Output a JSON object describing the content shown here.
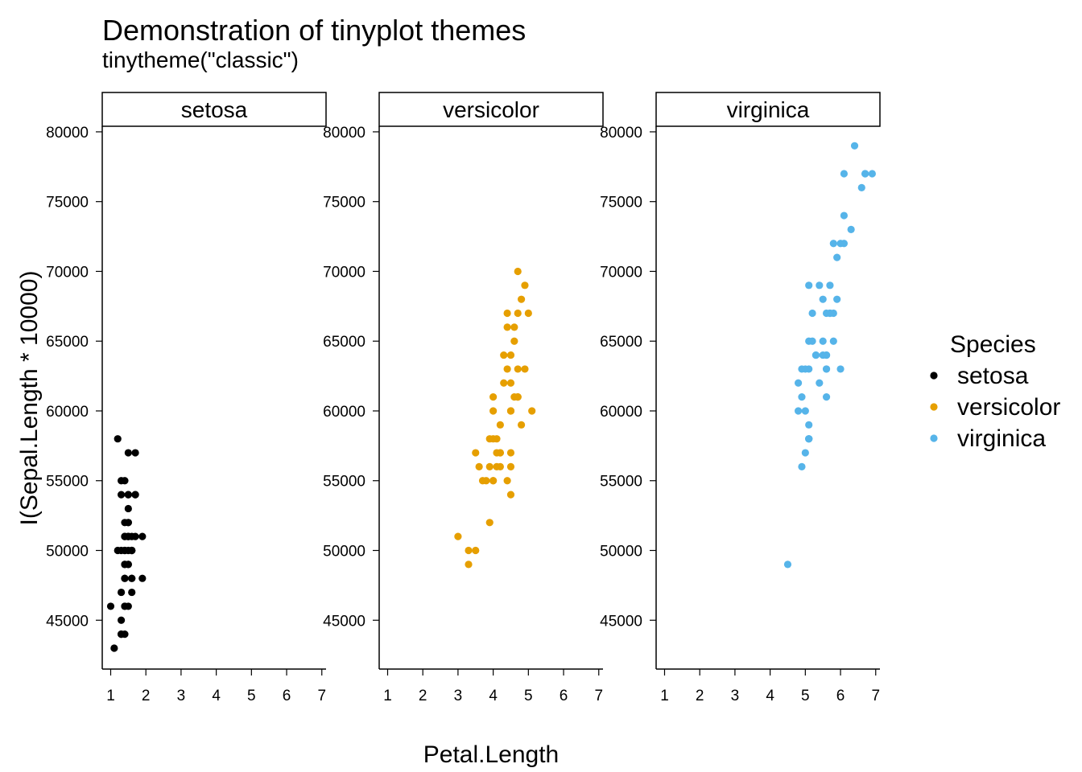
{
  "chart_data": {
    "type": "scatter",
    "title": "Demonstration of tinyplot themes",
    "subtitle": "tinytheme(\"classic\")",
    "xlabel": "Petal.Length",
    "ylabel": "I(Sepal.Length * 10000)",
    "xlim": [
      0.76,
      7.12
    ],
    "ylim": [
      41500,
      80400
    ],
    "x_ticks": [
      1,
      2,
      3,
      4,
      5,
      6,
      7
    ],
    "y_ticks": [
      45000,
      50000,
      55000,
      60000,
      65000,
      70000,
      75000,
      80000
    ],
    "legend": {
      "title": "Species",
      "placement": "right",
      "entries": [
        "setosa",
        "versicolor",
        "virginica"
      ]
    },
    "colors": {
      "setosa": "#000000",
      "versicolor": "#E69F00",
      "virginica": "#56B4E9"
    },
    "panels": [
      {
        "name": "setosa",
        "color": "#000000",
        "x": [
          1.4,
          1.4,
          1.3,
          1.5,
          1.4,
          1.7,
          1.4,
          1.5,
          1.4,
          1.5,
          1.5,
          1.6,
          1.4,
          1.1,
          1.2,
          1.5,
          1.3,
          1.4,
          1.7,
          1.5,
          1.7,
          1.5,
          1.0,
          1.7,
          1.9,
          1.6,
          1.6,
          1.5,
          1.4,
          1.6,
          1.6,
          1.5,
          1.5,
          1.4,
          1.5,
          1.2,
          1.3,
          1.4,
          1.3,
          1.5,
          1.3,
          1.3,
          1.3,
          1.6,
          1.9,
          1.4,
          1.6,
          1.4,
          1.5,
          1.4
        ],
        "y": [
          51000,
          49000,
          47000,
          46000,
          50000,
          54000,
          46000,
          50000,
          44000,
          49000,
          54000,
          48000,
          48000,
          43000,
          58000,
          57000,
          54000,
          51000,
          57000,
          51000,
          54000,
          51000,
          46000,
          51000,
          48000,
          50000,
          50000,
          52000,
          52000,
          47000,
          48000,
          54000,
          52000,
          55000,
          49000,
          50000,
          55000,
          49000,
          44000,
          51000,
          50000,
          45000,
          44000,
          50000,
          51000,
          48000,
          51000,
          46000,
          53000,
          50000
        ]
      },
      {
        "name": "versicolor",
        "color": "#E69F00",
        "x": [
          4.7,
          4.5,
          4.9,
          4.0,
          4.6,
          4.5,
          4.7,
          3.3,
          4.6,
          3.9,
          3.5,
          4.2,
          4.0,
          4.7,
          3.6,
          4.4,
          4.5,
          4.1,
          4.5,
          3.9,
          4.8,
          4.0,
          4.9,
          4.7,
          4.3,
          4.4,
          4.8,
          5.0,
          4.5,
          3.5,
          3.8,
          3.7,
          3.9,
          5.1,
          4.5,
          4.5,
          4.7,
          4.4,
          4.1,
          4.0,
          4.4,
          4.6,
          4.0,
          3.3,
          4.2,
          4.2,
          4.2,
          4.3,
          3.0,
          4.1
        ],
        "y": [
          70000,
          64000,
          69000,
          55000,
          65000,
          57000,
          63000,
          49000,
          66000,
          52000,
          50000,
          59000,
          60000,
          61000,
          56000,
          67000,
          56000,
          58000,
          62000,
          56000,
          59000,
          61000,
          63000,
          61000,
          64000,
          66000,
          68000,
          67000,
          60000,
          57000,
          55000,
          55000,
          58000,
          60000,
          54000,
          60000,
          67000,
          63000,
          56000,
          55000,
          55000,
          61000,
          58000,
          50000,
          56000,
          57000,
          57000,
          62000,
          51000,
          57000
        ]
      },
      {
        "name": "virginica",
        "color": "#56B4E9",
        "x": [
          6.0,
          5.1,
          5.9,
          5.6,
          5.8,
          6.6,
          4.5,
          6.3,
          5.8,
          6.1,
          5.1,
          5.3,
          5.5,
          5.0,
          5.1,
          5.3,
          5.5,
          6.7,
          6.9,
          5.0,
          5.7,
          4.9,
          6.7,
          4.9,
          5.7,
          6.0,
          4.8,
          4.9,
          5.6,
          5.8,
          6.1,
          6.4,
          5.6,
          5.1,
          5.6,
          6.1,
          5.6,
          5.5,
          4.8,
          5.4,
          5.6,
          5.1,
          5.1,
          5.9,
          5.7,
          5.2,
          5.0,
          5.2,
          5.4,
          5.1
        ],
        "y": [
          63000,
          58000,
          71000,
          63000,
          65000,
          76000,
          49000,
          73000,
          67000,
          72000,
          65000,
          64000,
          68000,
          57000,
          58000,
          64000,
          65000,
          77000,
          77000,
          60000,
          69000,
          56000,
          77000,
          63000,
          67000,
          72000,
          62000,
          61000,
          64000,
          72000,
          74000,
          79000,
          64000,
          63000,
          61000,
          77000,
          63000,
          64000,
          60000,
          69000,
          67000,
          69000,
          58000,
          68000,
          67000,
          67000,
          63000,
          65000,
          62000,
          59000
        ]
      }
    ]
  }
}
